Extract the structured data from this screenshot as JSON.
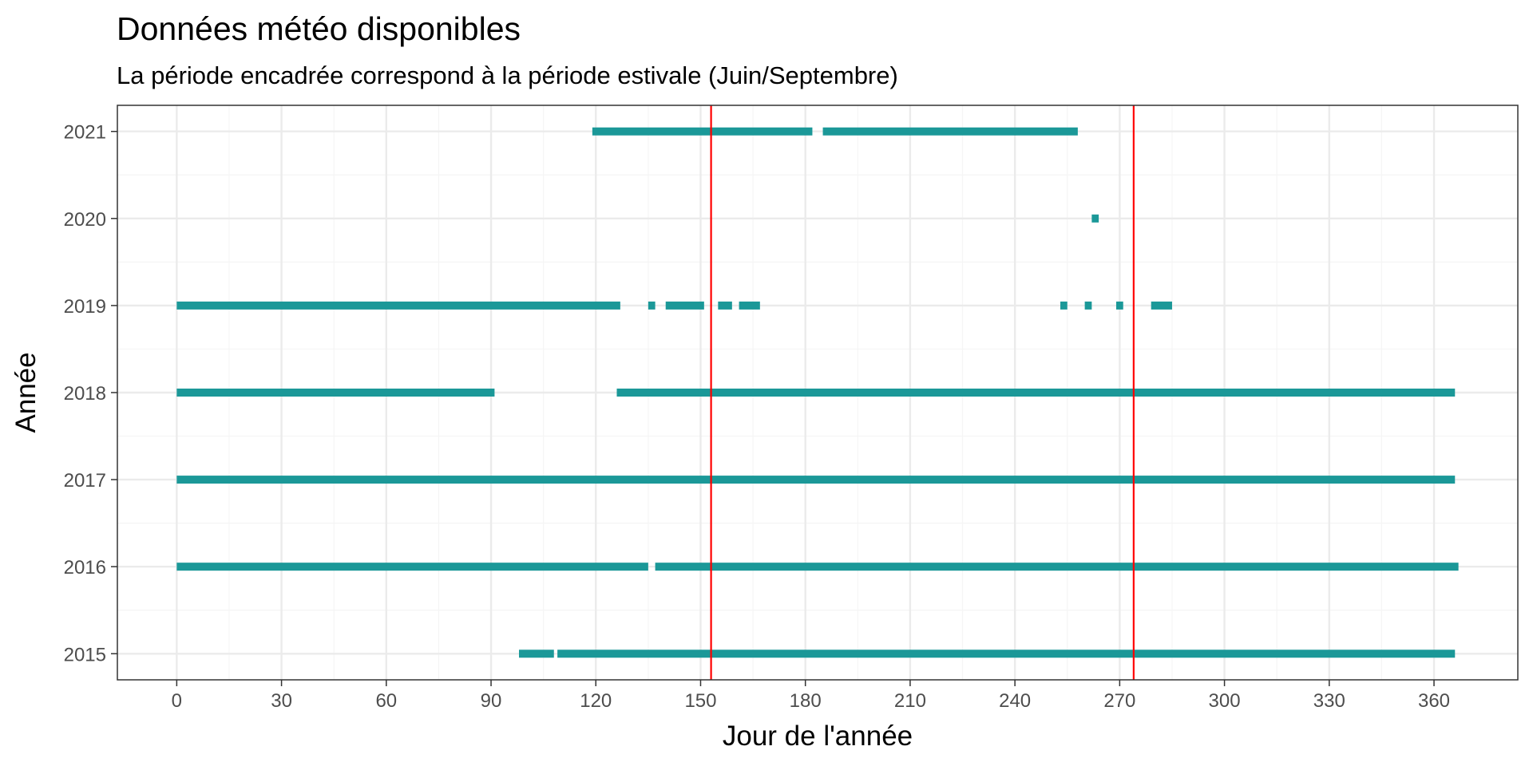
{
  "chart_data": {
    "type": "segments",
    "title": "Données météo disponibles",
    "subtitle": "La période encadrée correspond à la période estivale (Juin/Septembre)",
    "xlabel": "Jour de l'année",
    "ylabel": "Année",
    "xlim": [
      -17,
      384
    ],
    "ylim": [
      2014.7,
      2021.3
    ],
    "x_ticks": [
      0,
      30,
      60,
      90,
      120,
      150,
      180,
      210,
      240,
      270,
      300,
      330,
      360
    ],
    "y_ticks": [
      2015,
      2016,
      2017,
      2018,
      2019,
      2020,
      2021
    ],
    "grid": true,
    "legend": "none",
    "colors": {
      "data": "#1b9898",
      "vline": "#ff0000",
      "panel_border": "#333333",
      "grid_major": "#ebebeb",
      "grid_minor": "#f5f5f5"
    },
    "reference_lines_x": [
      153,
      274
    ],
    "series": [
      {
        "year": 2021,
        "ranges": [
          [
            119,
            182
          ],
          [
            185,
            258
          ]
        ]
      },
      {
        "year": 2020,
        "ranges": [
          [
            262,
            264
          ]
        ]
      },
      {
        "year": 2019,
        "ranges": [
          [
            0,
            127
          ],
          [
            135,
            137
          ],
          [
            140,
            151
          ],
          [
            155,
            159
          ],
          [
            161,
            167
          ],
          [
            253,
            255
          ],
          [
            260,
            262
          ],
          [
            269,
            271
          ],
          [
            279,
            285
          ]
        ]
      },
      {
        "year": 2018,
        "ranges": [
          [
            0,
            91
          ],
          [
            126,
            366
          ]
        ]
      },
      {
        "year": 2017,
        "ranges": [
          [
            0,
            366
          ]
        ]
      },
      {
        "year": 2016,
        "ranges": [
          [
            0,
            135
          ],
          [
            137,
            367
          ]
        ]
      },
      {
        "year": 2015,
        "ranges": [
          [
            98,
            108
          ],
          [
            109,
            366
          ]
        ]
      }
    ]
  }
}
